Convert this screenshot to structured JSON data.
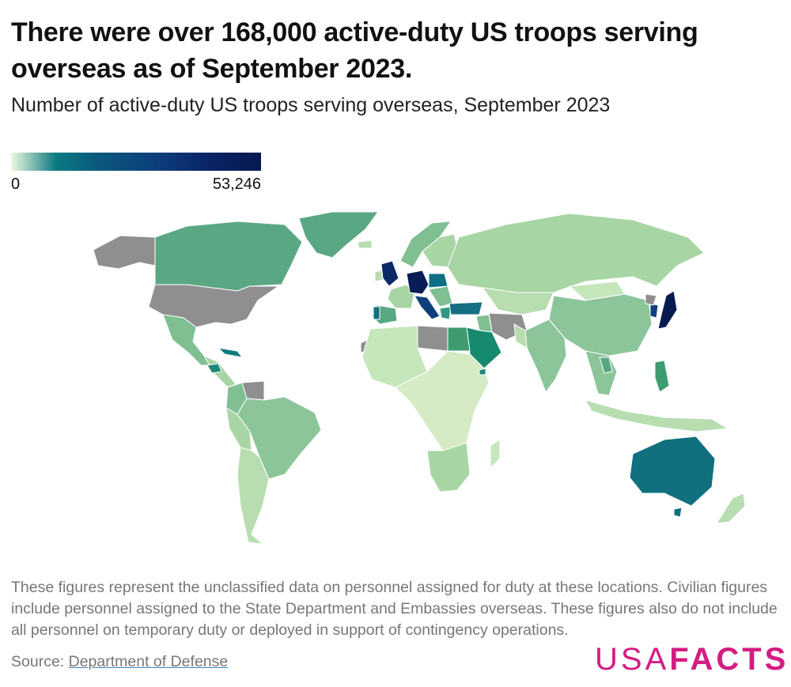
{
  "title": "There were over 168,000 active-duty US troops serving overseas as of September 2023.",
  "subtitle": "Number of active-duty US troops serving overseas, September 2023",
  "legend": {
    "min_label": "0",
    "max_label": "53,246",
    "min_value": 0,
    "max_value": 53246,
    "colors": [
      "#edf8e0",
      "#0b7a80",
      "#0d3c7c",
      "#071a50"
    ]
  },
  "no_data_color": "#8f8f8f",
  "note": "These figures represent the unclassified data on personnel assigned for duty at these locations. Civilian figures include personnel assigned to the State Department and Embassies overseas. These figures also do not include all personnel on temporary duty or deployed in support of contingency operations.",
  "source": {
    "label": "Source:",
    "link_text": "Department of Defense"
  },
  "logo": {
    "usa": "USA",
    "facts": "FACTS"
  }
}
